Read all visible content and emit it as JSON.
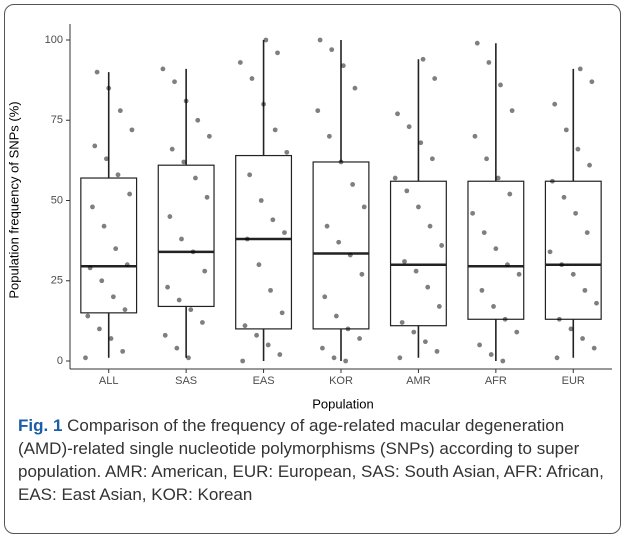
{
  "chart_data": {
    "type": "box",
    "y_label": "Population frequency of SNPs (%)",
    "x_label": "Population",
    "categories": [
      "ALL",
      "SAS",
      "EAS",
      "KOR",
      "AMR",
      "AFR",
      "EUR"
    ],
    "boxes": [
      {
        "min": 1,
        "q1": 15,
        "median": 29.5,
        "q3": 57,
        "max": 90
      },
      {
        "min": 1,
        "q1": 17,
        "median": 34,
        "q3": 61,
        "max": 91
      },
      {
        "min": 0,
        "q1": 10,
        "median": 38,
        "q3": 64,
        "max": 100
      },
      {
        "min": 0,
        "q1": 10,
        "median": 33.5,
        "q3": 62,
        "max": 100
      },
      {
        "min": 1,
        "q1": 11,
        "median": 30,
        "q3": 56,
        "max": 94
      },
      {
        "min": 0,
        "q1": 13,
        "median": 29.5,
        "q3": 56,
        "max": 99
      },
      {
        "min": 1,
        "q1": 13,
        "median": 30,
        "q3": 56,
        "max": 91
      }
    ],
    "points": [
      [
        1,
        3,
        7,
        10,
        14,
        16,
        20,
        25,
        29,
        30,
        35,
        42,
        48,
        52,
        58,
        63,
        67,
        72,
        78,
        85,
        90
      ],
      [
        1,
        4,
        8,
        12,
        16,
        19,
        23,
        28,
        34,
        38,
        45,
        51,
        57,
        62,
        66,
        70,
        75,
        81,
        87,
        91
      ],
      [
        0,
        2,
        5,
        8,
        11,
        15,
        22,
        30,
        38,
        40,
        44,
        50,
        58,
        65,
        72,
        80,
        88,
        93,
        96,
        100
      ],
      [
        0,
        1,
        4,
        7,
        10,
        14,
        20,
        27,
        33,
        37,
        42,
        48,
        55,
        62,
        70,
        78,
        85,
        92,
        97,
        100
      ],
      [
        1,
        3,
        6,
        9,
        12,
        17,
        23,
        28,
        31,
        36,
        42,
        48,
        53,
        57,
        63,
        68,
        73,
        77,
        88,
        94
      ],
      [
        0,
        2,
        5,
        9,
        13,
        17,
        22,
        27,
        30,
        35,
        40,
        46,
        52,
        57,
        63,
        70,
        78,
        86,
        93,
        99
      ],
      [
        1,
        4,
        7,
        10,
        13,
        18,
        22,
        27,
        30,
        34,
        40,
        46,
        51,
        56,
        61,
        66,
        72,
        80,
        87,
        91
      ]
    ],
    "ylim": [
      0,
      100
    ],
    "yticks": [
      0,
      25,
      50,
      75,
      100
    ],
    "caption_label": "Fig. 1",
    "caption_text": "Comparison of the frequency of age-related macular degeneration (AMD)-related single nucleotide polymorphisms (SNPs) according to super population. AMR: American, EUR: European, SAS: South Asian, AFR: African, EAS: East Asian, KOR: Korean"
  }
}
